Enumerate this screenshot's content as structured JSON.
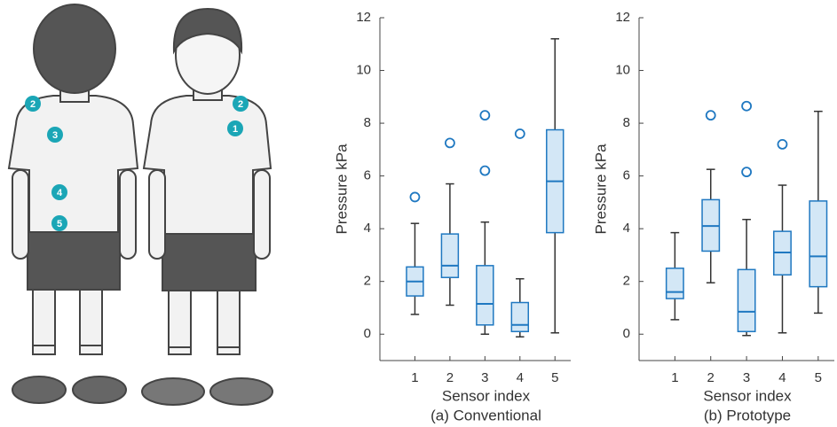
{
  "illustration": {
    "markers": [
      {
        "label": "2"
      },
      {
        "label": "3"
      },
      {
        "label": "4"
      },
      {
        "label": "5"
      },
      {
        "label": "2"
      },
      {
        "label": "1"
      }
    ]
  },
  "chart_data": [
    {
      "type": "box",
      "title": "(a) Conventional",
      "xlabel": "Sensor index",
      "ylabel": "Pressure kPa",
      "categories": [
        "1",
        "2",
        "3",
        "4",
        "5"
      ],
      "whislo": [
        0.75,
        1.1,
        0,
        -0.1,
        0.05
      ],
      "q1": [
        1.45,
        2.15,
        0.35,
        0.1,
        3.85
      ],
      "median": [
        2.0,
        2.6,
        1.15,
        0.35,
        5.8
      ],
      "q3": [
        2.55,
        3.8,
        2.6,
        1.2,
        7.75
      ],
      "whishi": [
        4.2,
        5.7,
        4.25,
        2.1,
        11.2
      ],
      "fliers": [
        [
          5.2
        ],
        [
          7.25
        ],
        [
          6.2,
          8.3
        ],
        [
          7.6
        ],
        []
      ],
      "ylim": [
        -1,
        12
      ],
      "yticks": [
        0,
        2,
        4,
        6,
        8,
        10,
        12
      ],
      "color": "#1f78c1",
      "fill": "#d3e7f6"
    },
    {
      "type": "box",
      "title": "(b) Prototype",
      "xlabel": "Sensor index",
      "ylabel": "Pressure kPa",
      "categories": [
        "1",
        "2",
        "3",
        "4",
        "5"
      ],
      "whislo": [
        0.55,
        1.95,
        -0.05,
        0.05,
        0.8
      ],
      "q1": [
        1.35,
        3.15,
        0.1,
        2.25,
        1.8
      ],
      "median": [
        1.6,
        4.1,
        0.85,
        3.1,
        2.95
      ],
      "q3": [
        2.5,
        5.1,
        2.45,
        3.9,
        5.05
      ],
      "whishi": [
        3.85,
        6.25,
        4.35,
        5.65,
        8.45
      ],
      "fliers": [
        [],
        [
          8.3
        ],
        [
          6.15,
          8.65
        ],
        [
          7.2
        ],
        []
      ],
      "ylim": [
        -1,
        12
      ],
      "yticks": [
        0,
        2,
        4,
        6,
        8,
        10,
        12
      ],
      "color": "#1f78c1",
      "fill": "#d3e7f6"
    }
  ]
}
